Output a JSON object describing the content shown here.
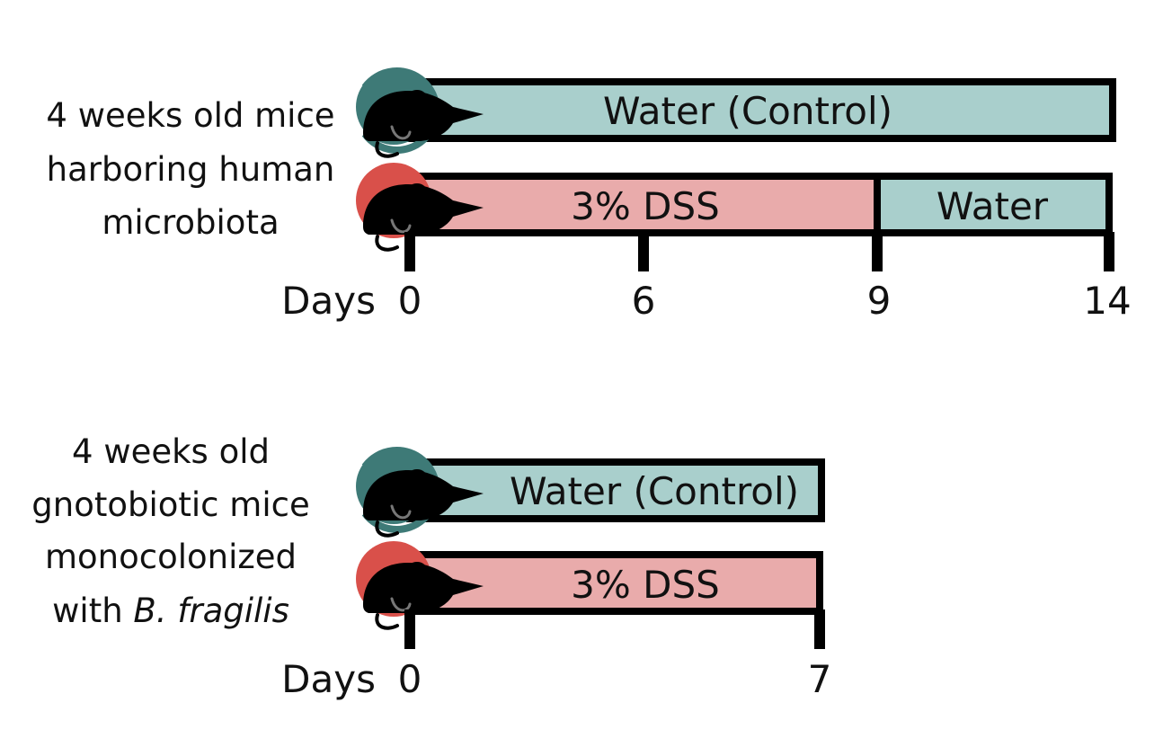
{
  "groups": [
    {
      "label_lines": [
        "4 weeks old mice",
        "harboring human",
        "microbiota"
      ],
      "days_label": "Days",
      "ticks": [
        "0",
        "6",
        "9",
        "14"
      ],
      "bars": [
        {
          "segments": [
            {
              "text": "Water (Control)",
              "kind": "water",
              "start_day": 0,
              "end_day": 14
            }
          ]
        },
        {
          "segments": [
            {
              "text": "3% DSS",
              "kind": "dss",
              "start_day": 0,
              "end_day": 9
            },
            {
              "text": "Water",
              "kind": "water",
              "start_day": 9,
              "end_day": 14
            }
          ]
        }
      ]
    },
    {
      "label_lines": [
        "4 weeks old",
        "gnotobiotic mice",
        "monocolonized"
      ],
      "label_last_prefix": "with ",
      "label_last_italic": "B. fragilis",
      "days_label": "Days",
      "ticks": [
        "0",
        "7"
      ],
      "bars": [
        {
          "segments": [
            {
              "text": "Water (Control)",
              "kind": "water",
              "start_day": 0,
              "end_day": 7
            }
          ]
        },
        {
          "segments": [
            {
              "text": "3% DSS",
              "kind": "dss",
              "start_day": 0,
              "end_day": 7
            }
          ]
        }
      ]
    }
  ],
  "colors": {
    "water_fill": "#a9cfcc",
    "dss_fill": "#e9abab",
    "control_mouse_accent": "#3e7a77",
    "dss_mouse_accent": "#d9504a",
    "outline": "#000000"
  }
}
